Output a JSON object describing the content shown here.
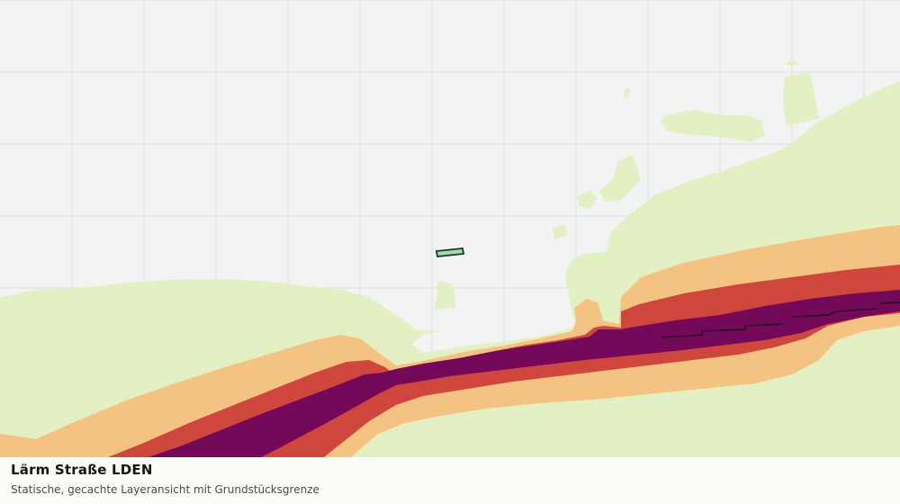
{
  "map": {
    "title": "Lärm Straße LDEN",
    "subtitle": "Statische, gecachte Layeransicht mit Grundstücksgrenze",
    "layers": [
      "grid",
      "noise-class-1",
      "noise-class-2",
      "noise-class-3",
      "noise-class-4",
      "parcel-boundary"
    ],
    "colors": {
      "background": "#f2f3f2",
      "grid": "#dcdedc",
      "noise_class_1": "#e2f0c4",
      "noise_class_2": "#f4c381",
      "noise_class_3": "#cf463d",
      "noise_class_4": "#740859",
      "parcel_fill": "#a6d8ae",
      "parcel_stroke": "#1c3a22"
    }
  }
}
